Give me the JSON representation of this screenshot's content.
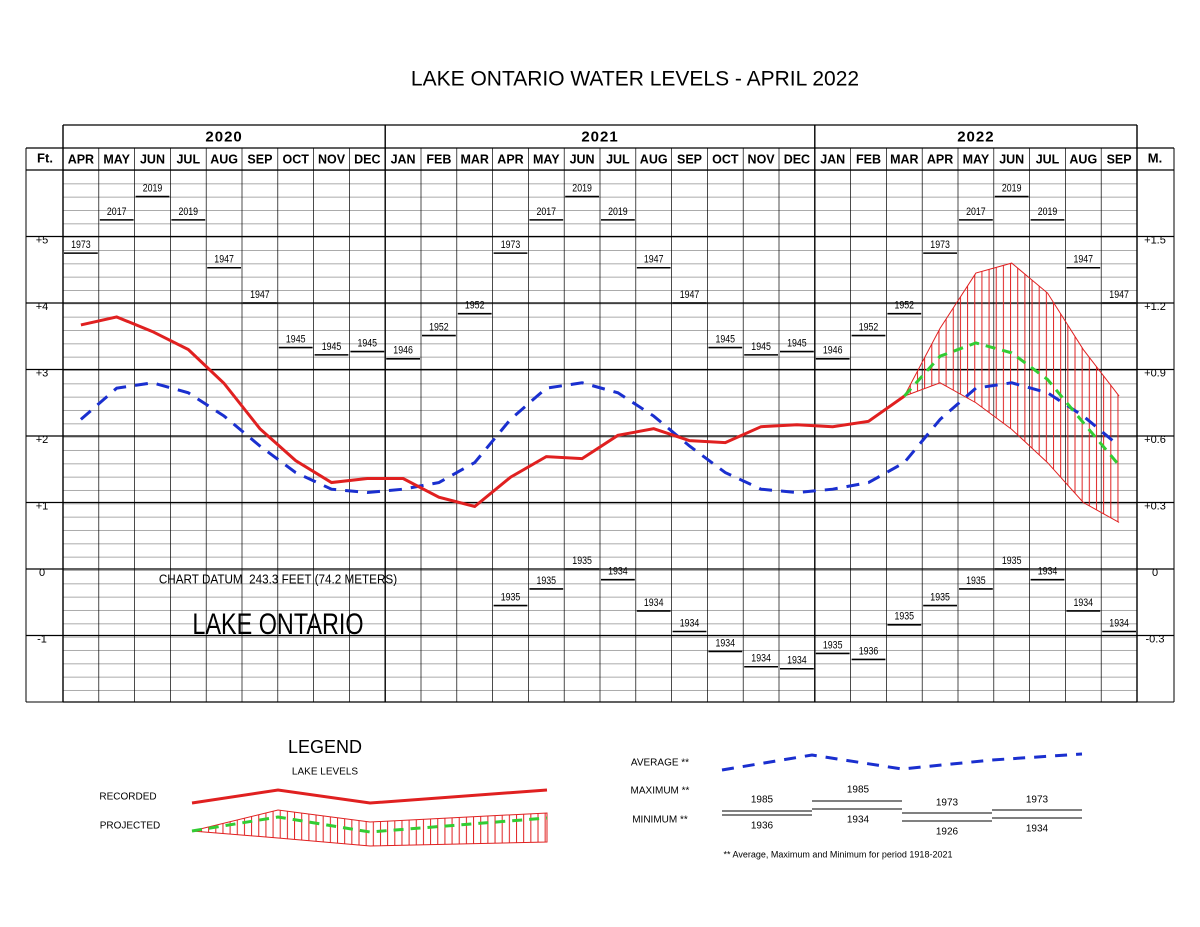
{
  "chart_data": {
    "type": "line",
    "title": "LAKE ONTARIO WATER LEVELS - APRIL 2022",
    "years": [
      "2020",
      "2021",
      "2022"
    ],
    "categories": [
      "APR",
      "MAY",
      "JUN",
      "JUL",
      "AUG",
      "SEP",
      "OCT",
      "NOV",
      "DEC",
      "JAN",
      "FEB",
      "MAR",
      "APR",
      "MAY",
      "JUN",
      "JUL",
      "AUG",
      "SEP",
      "OCT",
      "NOV",
      "DEC",
      "JAN",
      "FEB",
      "MAR",
      "APR",
      "MAY",
      "JUN",
      "JUL",
      "AUG",
      "SEP"
    ],
    "ylabel": "Ft.",
    "y2label": "M.",
    "ylim": [
      -2,
      6
    ],
    "yticks": [
      {
        "value": 5,
        "label": "+5"
      },
      {
        "value": 4,
        "label": "+4"
      },
      {
        "value": 3,
        "label": "+3"
      },
      {
        "value": 2,
        "label": "+2"
      },
      {
        "value": 1,
        "label": "+1"
      },
      0,
      -1
    ],
    "y2lim": [
      -0.6,
      1.8
    ],
    "y2ticks": [
      {
        "value": 1.5,
        "label": "+1.5"
      },
      {
        "value": 1.2,
        "label": "+1.2"
      },
      {
        "value": 0.9,
        "label": "+0.9"
      },
      {
        "value": 0.6,
        "label": "+0.6"
      },
      {
        "value": 0.3,
        "label": "+0.3"
      },
      0,
      -0.3
    ],
    "grid": true,
    "series": [
      {
        "name": "RECORDED",
        "color": "#e02020",
        "values": [
          3.67,
          3.79,
          3.57,
          3.3,
          2.79,
          2.11,
          1.63,
          1.3,
          1.36,
          1.36,
          1.08,
          0.94,
          1.38,
          1.69,
          1.66,
          2.01,
          2.11,
          1.93,
          1.9,
          2.14,
          2.17,
          2.14,
          2.22,
          2.6,
          null,
          null,
          null,
          null,
          null,
          null
        ]
      },
      {
        "name": "AVERAGE **",
        "color": "#1a2fcf",
        "values": [
          2.25,
          2.72,
          2.8,
          2.65,
          2.3,
          1.85,
          1.45,
          1.2,
          1.15,
          1.2,
          1.3,
          1.6,
          2.25,
          2.72,
          2.8,
          2.65,
          2.3,
          1.85,
          1.45,
          1.2,
          1.15,
          1.2,
          1.3,
          1.6,
          2.25,
          2.72,
          2.8,
          2.65,
          2.3,
          1.85
        ]
      },
      {
        "name": "PROJECTED",
        "color": "#33cc33",
        "band_color": "#e02020",
        "values": [
          null,
          null,
          null,
          null,
          null,
          null,
          null,
          null,
          null,
          null,
          null,
          null,
          null,
          null,
          null,
          null,
          null,
          null,
          null,
          null,
          null,
          null,
          null,
          2.6,
          3.2,
          3.4,
          3.25,
          2.85,
          2.2,
          1.56
        ],
        "upper": [
          null,
          null,
          null,
          null,
          null,
          null,
          null,
          null,
          null,
          null,
          null,
          null,
          null,
          null,
          null,
          null,
          null,
          null,
          null,
          null,
          null,
          null,
          null,
          2.6,
          3.62,
          4.45,
          4.6,
          4.15,
          3.3,
          2.6
        ],
        "lower": [
          null,
          null,
          null,
          null,
          null,
          null,
          null,
          null,
          null,
          null,
          null,
          null,
          null,
          null,
          null,
          null,
          null,
          null,
          null,
          null,
          null,
          null,
          null,
          2.6,
          2.8,
          2.5,
          2.1,
          1.6,
          1.0,
          0.7
        ]
      },
      {
        "name": "MAXIMUM **",
        "color": "#000000",
        "values": [
          4.75,
          5.25,
          5.6,
          5.25,
          4.53,
          4.0,
          3.33,
          3.22,
          3.27,
          3.16,
          3.51,
          3.84,
          4.75,
          5.25,
          5.6,
          5.25,
          4.53,
          4.0,
          3.33,
          3.22,
          3.27,
          3.16,
          3.51,
          3.84,
          4.75,
          5.25,
          5.6,
          5.25,
          4.53,
          4.0
        ],
        "years": [
          "1973",
          "2017",
          "2019",
          "2019",
          "1947",
          "1947",
          "1945",
          "1945",
          "1945",
          "1946",
          "1952",
          "1952",
          "1973",
          "2017",
          "2019",
          "2019",
          "1947",
          "1947",
          "1945",
          "1945",
          "1945",
          "1946",
          "1952",
          "1952",
          "1973",
          "2017",
          "2019",
          "2019",
          "1947",
          "1947"
        ]
      },
      {
        "name": "MINIMUM **",
        "color": "#000000",
        "values": [
          null,
          null,
          null,
          null,
          null,
          null,
          null,
          null,
          null,
          null,
          null,
          null,
          -0.55,
          -0.3,
          0,
          -0.16,
          -0.63,
          -0.94,
          -1.24,
          -1.47,
          -1.5,
          -1.27,
          -1.36,
          -0.84,
          -0.55,
          -0.3,
          0,
          -0.16,
          -0.63,
          -0.94
        ],
        "years": [
          null,
          null,
          null,
          null,
          null,
          null,
          null,
          null,
          null,
          null,
          null,
          null,
          "1935",
          "1935",
          "1935",
          "1934",
          "1934",
          "1934",
          "1934",
          "1934",
          "1934",
          "1935",
          "1936",
          "1935",
          "1935",
          "1935",
          "1935",
          "1934",
          "1934",
          "1934"
        ]
      }
    ],
    "annotations": [
      "CHART DATUM  243.3 FEET (74.2 METERS)",
      "LAKE ONTARIO"
    ],
    "legend": {
      "title": "LEGEND",
      "subtitle": "LAKE LEVELS",
      "maximum_example": [
        "1985",
        "1985",
        "1973",
        "1973"
      ],
      "minimum_example": [
        "1936",
        "1934",
        "1926",
        "1934"
      ],
      "note": "** Average, Maximum and Minimum for period 1918-2021"
    }
  }
}
